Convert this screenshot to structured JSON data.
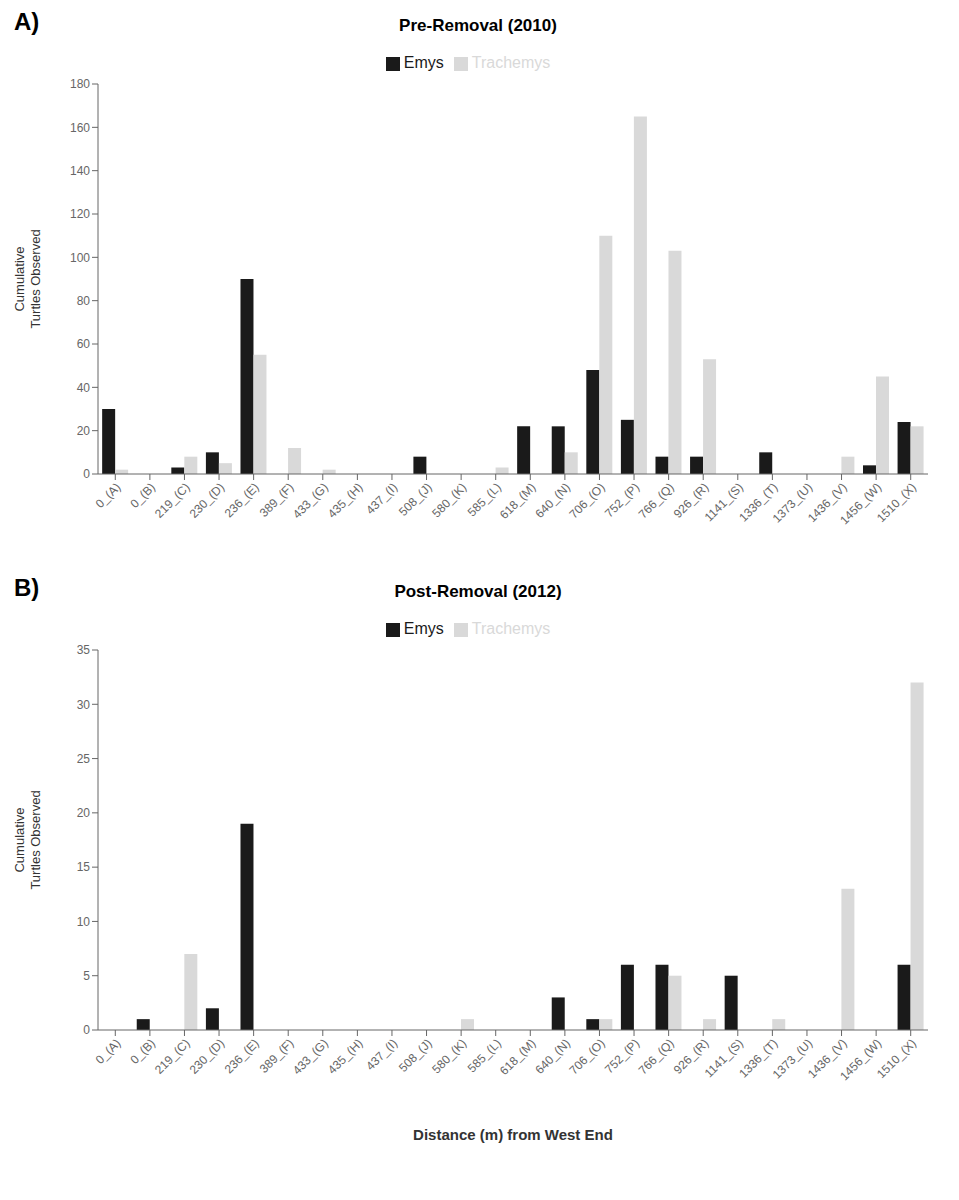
{
  "chart_data": [
    {
      "type": "bar",
      "title": "Pre-Removal (2010)",
      "annotations": [
        "A)"
      ],
      "categories": [
        "0_(A)",
        "0_(B)",
        "219_(C)",
        "230_(D)",
        "236_(E)",
        "389_(F)",
        "433_(G)",
        "435_(H)",
        "437_(I)",
        "508_(J)",
        "580_(K)",
        "585_(L)",
        "618_(M)",
        "640_(N)",
        "706_(O)",
        "752_(P)",
        "766_(Q)",
        "926_(R)",
        "1141_(S)",
        "1336_(T)",
        "1373_(U)",
        "1436_(V)",
        "1456_(W)",
        "1510_(X)"
      ],
      "series": [
        {
          "name": "Emys",
          "color": "#1a1a1a",
          "values": [
            30,
            0,
            3,
            10,
            90,
            0,
            0,
            0,
            0,
            8,
            0,
            0,
            22,
            22,
            48,
            25,
            8,
            8,
            0,
            10,
            0,
            0,
            4,
            24
          ]
        },
        {
          "name": "Trachemys",
          "color": "#d9d9d9",
          "values": [
            2,
            0,
            8,
            5,
            55,
            12,
            2,
            0,
            0,
            0,
            0,
            3,
            0,
            10,
            110,
            165,
            103,
            53,
            0,
            0,
            0,
            8,
            45,
            22
          ]
        }
      ],
      "ylabel": "Cumulative\nTurtles Observed",
      "ylim": [
        0,
        180
      ],
      "yticks": [
        0,
        20,
        40,
        60,
        80,
        100,
        120,
        140,
        160,
        180
      ],
      "grid": false,
      "legend": "top"
    },
    {
      "type": "bar",
      "title": "Post-Removal (2012)",
      "annotations": [
        "B)"
      ],
      "categories": [
        "0_(A)",
        "0_(B)",
        "219_(C)",
        "230_(D)",
        "236_(E)",
        "389_(F)",
        "433_(G)",
        "435_(H)",
        "437_(I)",
        "508_(J)",
        "580_(K)",
        "585_(L)",
        "618_(M)",
        "640_(N)",
        "706_(O)",
        "752_(P)",
        "766_(Q)",
        "926_(R)",
        "1141_(S)",
        "1336_(T)",
        "1373_(U)",
        "1436_(V)",
        "1456_(W)",
        "1510_(X)"
      ],
      "series": [
        {
          "name": "Emys",
          "color": "#1a1a1a",
          "values": [
            0,
            1,
            0,
            2,
            19,
            0,
            0,
            0,
            0,
            0,
            0,
            0,
            0,
            3,
            1,
            6,
            6,
            0,
            5,
            0,
            0,
            0,
            0,
            6
          ]
        },
        {
          "name": "Trachemys",
          "color": "#d9d9d9",
          "values": [
            0,
            0,
            7,
            0,
            0,
            0,
            0,
            0,
            0,
            0,
            1,
            0,
            0,
            0,
            1,
            0,
            5,
            1,
            0,
            1,
            0,
            13,
            0,
            32
          ]
        }
      ],
      "ylabel": "Cumulative\nTurtles Observed",
      "xlabel": "Distance (m) from West End",
      "ylim": [
        0,
        35
      ],
      "yticks": [
        0,
        5,
        10,
        15,
        20,
        25,
        30,
        35
      ],
      "grid": false,
      "legend": "top"
    }
  ]
}
